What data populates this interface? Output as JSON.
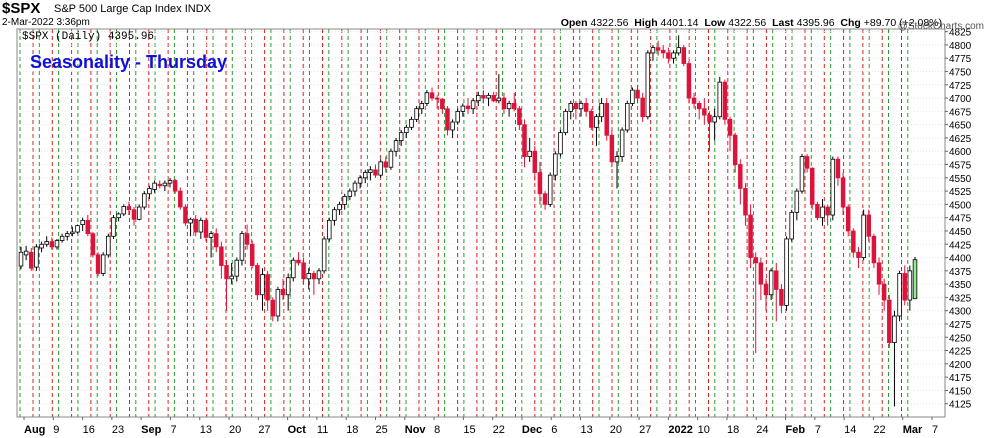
{
  "header": {
    "symbol": "$SPX",
    "name": "S&P 500 Large Cap Index",
    "exchange": "INDX",
    "datetime": "2-Mar-2022 3:36pm",
    "open_label": "Open",
    "open": "4322.56",
    "high_label": "High",
    "high": "4401.14",
    "low_label": "Low",
    "low": "4322.56",
    "last_label": "Last",
    "last": "4395.96",
    "chg_label": "Chg",
    "chg": "+89.70 (+2.08%)",
    "copyright": "@StockCharts.com"
  },
  "legend": "$SPX (Daily) 4395.96",
  "colors": {
    "up": "#ffffff",
    "down": "#dc143c",
    "today": "#90ee90",
    "green_line": "#2e9a2e",
    "red_line": "#d82020"
  },
  "chart_data": {
    "type": "candlestick",
    "title": "Seasonality - Thursday",
    "ylim": [
      4100,
      4830
    ],
    "ytick_values": [
      4125,
      4150,
      4175,
      4200,
      4225,
      4250,
      4275,
      4300,
      4325,
      4350,
      4375,
      4400,
      4425,
      4450,
      4475,
      4500,
      4525,
      4550,
      4575,
      4600,
      4625,
      4650,
      4675,
      4700,
      4725,
      4750,
      4775,
      4800,
      4825
    ],
    "xtick_labels": [
      "Aug",
      "9",
      "16",
      "23",
      "Sep",
      "7",
      "13",
      "20",
      "27",
      "Oct",
      "11",
      "18",
      "25",
      "Nov",
      "8",
      "15",
      "22",
      "Dec",
      "6",
      "13",
      "20",
      "27",
      "2022",
      "10",
      "18",
      "24",
      "Feb",
      "7",
      "14",
      "22",
      "Mar",
      "7"
    ],
    "candles": [
      [
        4384,
        4420,
        4378,
        4410
      ],
      [
        4405,
        4422,
        4395,
        4412
      ],
      [
        4410,
        4418,
        4375,
        4380
      ],
      [
        4382,
        4425,
        4375,
        4420
      ],
      [
        4418,
        4430,
        4410,
        4425
      ],
      [
        4425,
        4440,
        4420,
        4430
      ],
      [
        4430,
        4438,
        4415,
        4420
      ],
      [
        4420,
        4435,
        4415,
        4432
      ],
      [
        4432,
        4445,
        4428,
        4440
      ],
      [
        4440,
        4450,
        4432,
        4445
      ],
      [
        4445,
        4458,
        4440,
        4448
      ],
      [
        4448,
        4462,
        4445,
        4460
      ],
      [
        4462,
        4475,
        4450,
        4470
      ],
      [
        4470,
        4480,
        4440,
        4445
      ],
      [
        4445,
        4448,
        4400,
        4405
      ],
      [
        4405,
        4410,
        4365,
        4370
      ],
      [
        4370,
        4410,
        4365,
        4405
      ],
      [
        4405,
        4445,
        4400,
        4440
      ],
      [
        4440,
        4480,
        4435,
        4475
      ],
      [
        4475,
        4485,
        4468,
        4482
      ],
      [
        4482,
        4500,
        4478,
        4496
      ],
      [
        4496,
        4505,
        4480,
        4490
      ],
      [
        4490,
        4495,
        4460,
        4472
      ],
      [
        4472,
        4500,
        4470,
        4495
      ],
      [
        4495,
        4525,
        4490,
        4520
      ],
      [
        4520,
        4535,
        4510,
        4530
      ],
      [
        4528,
        4545,
        4522,
        4540
      ],
      [
        4538,
        4545,
        4530,
        4535
      ],
      [
        4535,
        4545,
        4525,
        4540
      ],
      [
        4540,
        4550,
        4532,
        4545
      ],
      [
        4545,
        4548,
        4520,
        4525
      ],
      [
        4525,
        4532,
        4490,
        4495
      ],
      [
        4495,
        4500,
        4460,
        4465
      ],
      [
        4465,
        4475,
        4440,
        4472
      ],
      [
        4472,
        4480,
        4440,
        4448
      ],
      [
        4448,
        4475,
        4435,
        4470
      ],
      [
        4470,
        4475,
        4430,
        4438
      ],
      [
        4438,
        4450,
        4400,
        4445
      ],
      [
        4445,
        4455,
        4410,
        4420
      ],
      [
        4420,
        4430,
        4360,
        4385
      ],
      [
        4385,
        4395,
        4300,
        4360
      ],
      [
        4360,
        4390,
        4350,
        4365
      ],
      [
        4365,
        4400,
        4355,
        4395
      ],
      [
        4395,
        4450,
        4385,
        4445
      ],
      [
        4445,
        4462,
        4415,
        4425
      ],
      [
        4425,
        4432,
        4380,
        4385
      ],
      [
        4385,
        4390,
        4320,
        4330
      ],
      [
        4330,
        4380,
        4300,
        4368
      ],
      [
        4368,
        4375,
        4300,
        4320
      ],
      [
        4320,
        4325,
        4280,
        4290
      ],
      [
        4290,
        4345,
        4280,
        4340
      ],
      [
        4340,
        4360,
        4320,
        4330
      ],
      [
        4330,
        4370,
        4300,
        4362
      ],
      [
        4362,
        4400,
        4355,
        4395
      ],
      [
        4395,
        4410,
        4385,
        4390
      ],
      [
        4390,
        4400,
        4350,
        4360
      ],
      [
        4360,
        4380,
        4340,
        4370
      ],
      [
        4370,
        4375,
        4330,
        4360
      ],
      [
        4360,
        4380,
        4350,
        4375
      ],
      [
        4375,
        4440,
        4370,
        4435
      ],
      [
        4435,
        4475,
        4430,
        4470
      ],
      [
        4470,
        4495,
        4460,
        4490
      ],
      [
        4490,
        4505,
        4480,
        4500
      ],
      [
        4500,
        4520,
        4490,
        4515
      ],
      [
        4515,
        4530,
        4508,
        4525
      ],
      [
        4525,
        4545,
        4515,
        4540
      ],
      [
        4540,
        4555,
        4530,
        4550
      ],
      [
        4550,
        4565,
        4540,
        4560
      ],
      [
        4560,
        4572,
        4545,
        4565
      ],
      [
        4565,
        4575,
        4550,
        4555
      ],
      [
        4555,
        4585,
        4550,
        4580
      ],
      [
        4580,
        4590,
        4560,
        4570
      ],
      [
        4570,
        4605,
        4565,
        4600
      ],
      [
        4600,
        4625,
        4590,
        4620
      ],
      [
        4620,
        4640,
        4610,
        4635
      ],
      [
        4635,
        4650,
        4625,
        4645
      ],
      [
        4645,
        4665,
        4640,
        4660
      ],
      [
        4660,
        4685,
        4655,
        4680
      ],
      [
        4680,
        4695,
        4670,
        4690
      ],
      [
        4690,
        4715,
        4685,
        4710
      ],
      [
        4710,
        4720,
        4695,
        4700
      ],
      [
        4700,
        4705,
        4680,
        4698
      ],
      [
        4698,
        4700,
        4670,
        4680
      ],
      [
        4680,
        4685,
        4630,
        4640
      ],
      [
        4640,
        4660,
        4625,
        4655
      ],
      [
        4655,
        4680,
        4650,
        4675
      ],
      [
        4675,
        4690,
        4665,
        4685
      ],
      [
        4685,
        4700,
        4670,
        4680
      ],
      [
        4680,
        4700,
        4670,
        4695
      ],
      [
        4695,
        4712,
        4685,
        4705
      ],
      [
        4705,
        4715,
        4690,
        4700
      ],
      [
        4700,
        4710,
        4685,
        4705
      ],
      [
        4705,
        4712,
        4692,
        4695
      ],
      [
        4695,
        4745,
        4690,
        4700
      ],
      [
        4700,
        4710,
        4670,
        4680
      ],
      [
        4680,
        4695,
        4665,
        4690
      ],
      [
        4690,
        4710,
        4675,
        4680
      ],
      [
        4680,
        4685,
        4640,
        4650
      ],
      [
        4650,
        4660,
        4570,
        4590
      ],
      [
        4590,
        4625,
        4580,
        4600
      ],
      [
        4600,
        4610,
        4545,
        4560
      ],
      [
        4560,
        4580,
        4500,
        4520
      ],
      [
        4520,
        4525,
        4490,
        4500
      ],
      [
        4500,
        4560,
        4495,
        4555
      ],
      [
        4555,
        4600,
        4545,
        4595
      ],
      [
        4595,
        4640,
        4590,
        4635
      ],
      [
        4635,
        4680,
        4630,
        4675
      ],
      [
        4675,
        4695,
        4660,
        4690
      ],
      [
        4690,
        4695,
        4660,
        4680
      ],
      [
        4680,
        4695,
        4665,
        4690
      ],
      [
        4690,
        4700,
        4665,
        4675
      ],
      [
        4675,
        4680,
        4640,
        4645
      ],
      [
        4645,
        4670,
        4610,
        4665
      ],
      [
        4665,
        4700,
        4655,
        4690
      ],
      [
        4690,
        4700,
        4620,
        4630
      ],
      [
        4630,
        4640,
        4570,
        4580
      ],
      [
        4580,
        4600,
        4530,
        4590
      ],
      [
        4590,
        4645,
        4580,
        4640
      ],
      [
        4640,
        4695,
        4635,
        4690
      ],
      [
        4690,
        4720,
        4685,
        4715
      ],
      [
        4715,
        4725,
        4690,
        4700
      ],
      [
        4700,
        4710,
        4655,
        4665
      ],
      [
        4665,
        4790,
        4660,
        4785
      ],
      [
        4785,
        4800,
        4770,
        4795
      ],
      [
        4795,
        4808,
        4780,
        4790
      ],
      [
        4790,
        4800,
        4775,
        4785
      ],
      [
        4785,
        4795,
        4765,
        4775
      ],
      [
        4775,
        4790,
        4765,
        4785
      ],
      [
        4785,
        4818,
        4780,
        4795
      ],
      [
        4795,
        4800,
        4760,
        4765
      ],
      [
        4765,
        4770,
        4690,
        4700
      ],
      [
        4700,
        4710,
        4680,
        4690
      ],
      [
        4690,
        4695,
        4660,
        4680
      ],
      [
        4680,
        4700,
        4650,
        4668
      ],
      [
        4668,
        4675,
        4600,
        4655
      ],
      [
        4655,
        4680,
        4620,
        4665
      ],
      [
        4665,
        4740,
        4660,
        4730
      ],
      [
        4730,
        4735,
        4650,
        4660
      ],
      [
        4660,
        4665,
        4600,
        4630
      ],
      [
        4630,
        4635,
        4560,
        4575
      ],
      [
        4575,
        4585,
        4500,
        4530
      ],
      [
        4530,
        4540,
        4460,
        4480
      ],
      [
        4480,
        4500,
        4380,
        4400
      ],
      [
        4400,
        4410,
        4220,
        4390
      ],
      [
        4390,
        4400,
        4320,
        4350
      ],
      [
        4350,
        4360,
        4300,
        4330
      ],
      [
        4330,
        4380,
        4320,
        4375
      ],
      [
        4375,
        4390,
        4280,
        4340
      ],
      [
        4340,
        4350,
        4295,
        4310
      ],
      [
        4310,
        4440,
        4300,
        4435
      ],
      [
        4435,
        4490,
        4430,
        4485
      ],
      [
        4485,
        4530,
        4470,
        4525
      ],
      [
        4525,
        4595,
        4520,
        4590
      ],
      [
        4590,
        4595,
        4560,
        4568
      ],
      [
        4568,
        4570,
        4490,
        4500
      ],
      [
        4500,
        4505,
        4470,
        4475
      ],
      [
        4475,
        4510,
        4460,
        4495
      ],
      [
        4495,
        4500,
        4460,
        4480
      ],
      [
        4480,
        4590,
        4470,
        4585
      ],
      [
        4585,
        4590,
        4535,
        4550
      ],
      [
        4550,
        4560,
        4480,
        4495
      ],
      [
        4495,
        4500,
        4440,
        4450
      ],
      [
        4450,
        4455,
        4400,
        4410
      ],
      [
        4410,
        4420,
        4380,
        4400
      ],
      [
        4400,
        4490,
        4395,
        4480
      ],
      [
        4480,
        4490,
        4430,
        4440
      ],
      [
        4440,
        4445,
        4380,
        4390
      ],
      [
        4390,
        4400,
        4330,
        4350
      ],
      [
        4350,
        4360,
        4300,
        4320
      ],
      [
        4320,
        4330,
        4230,
        4240
      ],
      [
        4240,
        4300,
        4120,
        4290
      ],
      [
        4290,
        4375,
        4280,
        4370
      ],
      [
        4370,
        4385,
        4310,
        4320
      ],
      [
        4320,
        4385,
        4300,
        4375
      ],
      [
        4322.56,
        4401.14,
        4322.56,
        4395.96
      ]
    ]
  }
}
